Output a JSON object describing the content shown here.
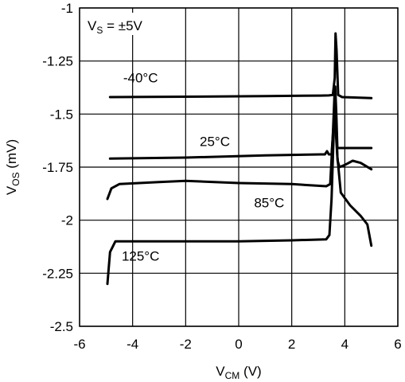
{
  "chart_data": {
    "type": "line",
    "title": "",
    "xlabel": "V_CM (V)",
    "ylabel": "V_OS (mV)",
    "xlim": [
      -6,
      6
    ],
    "ylim": [
      -2.5,
      -1
    ],
    "grid": true,
    "x_ticks": [
      -6,
      -4,
      -2,
      0,
      2,
      4,
      6
    ],
    "y_ticks": [
      -1,
      -1.25,
      -1.5,
      -1.75,
      -2,
      -2.25,
      -2.5
    ],
    "x_tick_labels": [
      "-6",
      "-4",
      "-2",
      "0",
      "2",
      "4",
      "6"
    ],
    "y_tick_labels": [
      "-1",
      "-1.25",
      "-1.5",
      "-1.75",
      "-2",
      "-2.25",
      "-2.5"
    ],
    "annotation": "V_S = ±5V",
    "series": [
      {
        "name": "-40°C",
        "label_at": [
          -3.7,
          -1.35
        ],
        "points": [
          [
            -4.85,
            -1.42
          ],
          [
            -2,
            -1.418
          ],
          [
            1,
            -1.415
          ],
          [
            3.1,
            -1.413
          ],
          [
            3.4,
            -1.412
          ],
          [
            3.55,
            -1.41
          ],
          [
            3.62,
            -1.33
          ],
          [
            3.65,
            -1.12
          ],
          [
            3.69,
            -1.2
          ],
          [
            3.75,
            -1.41
          ],
          [
            3.9,
            -1.42
          ],
          [
            5.0,
            -1.425
          ]
        ]
      },
      {
        "name": "25°C",
        "label_at": [
          -0.9,
          -1.65
        ],
        "points": [
          [
            -4.85,
            -1.71
          ],
          [
            -2,
            -1.705
          ],
          [
            1,
            -1.695
          ],
          [
            3.1,
            -1.69
          ],
          [
            3.25,
            -1.69
          ],
          [
            3.33,
            -1.675
          ],
          [
            3.4,
            -1.69
          ],
          [
            3.5,
            -1.69
          ],
          [
            3.58,
            -1.55
          ],
          [
            3.64,
            -1.37
          ],
          [
            3.68,
            -1.5
          ],
          [
            3.72,
            -1.66
          ],
          [
            3.85,
            -1.66
          ],
          [
            5.0,
            -1.66
          ]
        ]
      },
      {
        "name": "85°C",
        "label_at": [
          1.15,
          -1.94
        ],
        "points": [
          [
            -4.95,
            -1.9
          ],
          [
            -4.8,
            -1.85
          ],
          [
            -4.5,
            -1.83
          ],
          [
            -3,
            -1.82
          ],
          [
            -2,
            -1.815
          ],
          [
            0,
            -1.825
          ],
          [
            2,
            -1.83
          ],
          [
            3.3,
            -1.84
          ],
          [
            3.45,
            -1.83
          ],
          [
            3.55,
            -1.6
          ],
          [
            3.62,
            -1.38
          ],
          [
            3.67,
            -1.6
          ],
          [
            3.73,
            -1.72
          ],
          [
            3.8,
            -1.75
          ],
          [
            4.0,
            -1.74
          ],
          [
            4.3,
            -1.72
          ],
          [
            4.6,
            -1.73
          ],
          [
            5.0,
            -1.76
          ]
        ]
      },
      {
        "name": "125°C",
        "label_at": [
          -3.7,
          -2.19
        ],
        "points": [
          [
            -4.95,
            -2.3
          ],
          [
            -4.85,
            -2.15
          ],
          [
            -4.65,
            -2.1
          ],
          [
            -4,
            -2.1
          ],
          [
            -2,
            -2.1
          ],
          [
            0,
            -2.1
          ],
          [
            2,
            -2.095
          ],
          [
            3.3,
            -2.09
          ],
          [
            3.42,
            -2.07
          ],
          [
            3.5,
            -1.9
          ],
          [
            3.58,
            -1.6
          ],
          [
            3.63,
            -1.42
          ],
          [
            3.67,
            -1.5
          ],
          [
            3.72,
            -1.7
          ],
          [
            3.85,
            -1.87
          ],
          [
            4.2,
            -1.93
          ],
          [
            4.6,
            -1.98
          ],
          [
            4.85,
            -2.02
          ],
          [
            5.0,
            -2.12
          ]
        ]
      }
    ]
  }
}
